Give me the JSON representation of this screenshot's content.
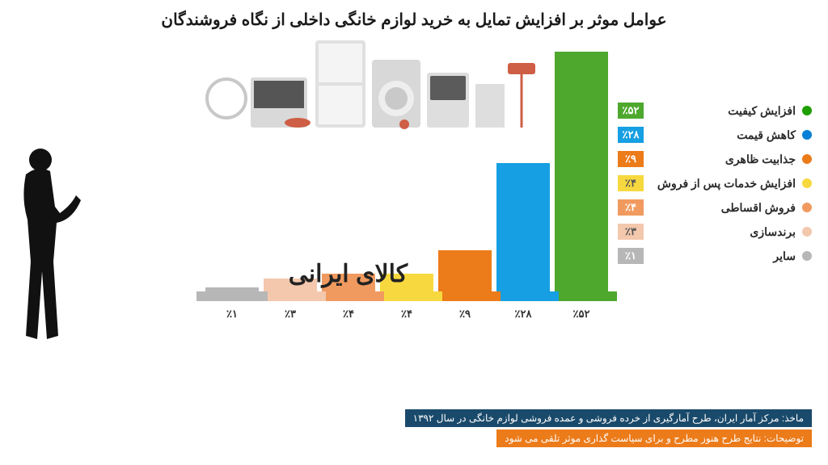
{
  "title": "عوامل موثر بر افزایش تمایل به خرید لوازم خانگی داخلی از نگاه فروشندگان",
  "chart": {
    "type": "bar",
    "max_value": 52,
    "overlay_text": "کالای ایرانی",
    "series": [
      {
        "label": "افزایش کیفیت",
        "value": 52,
        "display": "٪۵۲",
        "color": "#4ea82e",
        "marker": "#1e9e00"
      },
      {
        "label": "کاهش قیمت",
        "value": 28,
        "display": "٪۲۸",
        "color": "#169fe2",
        "marker": "#0680d6"
      },
      {
        "label": "جذابیت ظاهری",
        "value": 9,
        "display": "٪۹",
        "color": "#ec7b1a",
        "marker": "#ec7b1a"
      },
      {
        "label": "افزایش خدمات پس از فروش",
        "value": 4,
        "display": "٪۴",
        "color": "#f7d93f",
        "marker": "#f7d93f"
      },
      {
        "label": "فروش اقساطی",
        "value": 4,
        "display": "٪۴",
        "color": "#f19a5f",
        "marker": "#f19a5f"
      },
      {
        "label": "برندسازی",
        "value": 3,
        "display": "٪۳",
        "color": "#f3c8ad",
        "marker": "#f3c8ad"
      },
      {
        "label": "سایر",
        "value": 1,
        "display": "٪۱",
        "color": "#b7b7b7",
        "marker": "#b7b7b7"
      }
    ]
  },
  "footer": {
    "source_prefix": "ماخذ: ",
    "source": "مرکز آمار ایران، طرح آمارگیری از خرده فروشی و عمده فروشی لوازم خانگی در سال ۱۳۹۲",
    "source_bg": "#1a4a6b",
    "note_prefix": "توضیحات: ",
    "note": "نتایج طرح هنوز مطرح و برای سیاست گذاری موثر تلقی می شود",
    "note_bg": "#ec7b1a"
  },
  "colors": {
    "legend_text": "#2a2a2a",
    "title": "#1a1a1a"
  }
}
